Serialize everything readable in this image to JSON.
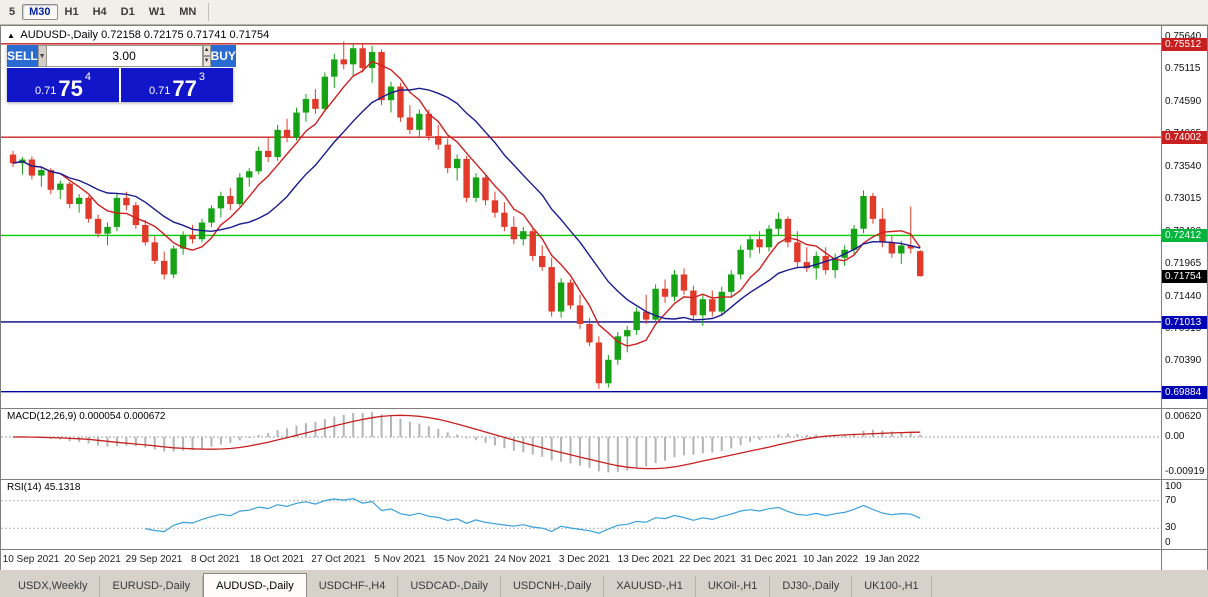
{
  "toolbar": {
    "buttons": [
      {
        "label": "5",
        "active": false
      },
      {
        "label": "M30",
        "active": true
      },
      {
        "label": "H1",
        "active": false
      },
      {
        "label": "H4",
        "active": false
      },
      {
        "label": "D1",
        "active": false
      },
      {
        "label": "W1",
        "active": false
      },
      {
        "label": "MN",
        "active": false
      }
    ]
  },
  "chart": {
    "header": {
      "collapse": "▲",
      "title": "AUDUSD-,Daily",
      "ohlc": "0.72158 0.72175 0.71741 0.71754"
    }
  },
  "trade_panel": {
    "sell_label": "SELL",
    "buy_label": "BUY",
    "volume": "3.00",
    "sell_price": {
      "small": "0.71",
      "big": "75",
      "sup": "4"
    },
    "buy_price": {
      "small": "0.71",
      "big": "77",
      "sup": "3"
    }
  },
  "price_axis": {
    "ticks": [
      "0.75640",
      "0.75115",
      "0.74590",
      "0.74065",
      "0.73540",
      "0.73015",
      "0.72490",
      "0.71965",
      "0.71440",
      "0.70915",
      "0.70390"
    ],
    "badges": [
      {
        "label": "0.75512",
        "value": 0.75512,
        "color": "#c82020"
      },
      {
        "label": "0.74002",
        "value": 0.74002,
        "color": "#c82020"
      },
      {
        "label": "0.72412",
        "value": 0.72412,
        "color": "#00b43c"
      },
      {
        "label": "0.71754",
        "value": 0.71754,
        "color": "#000000"
      },
      {
        "label": "0.71013",
        "value": 0.71013,
        "color": "#0000b4"
      },
      {
        "label": "0.69884",
        "value": 0.69884,
        "color": "#0000b4"
      }
    ]
  },
  "macd": {
    "title": "MACD(12,26,9)",
    "values": "0.000054 0.000672",
    "axis_top": "0.00620",
    "axis_zero": "0.00",
    "axis_bottom": "-0.00919",
    "max": 0.007,
    "min": -0.0105,
    "bar_color": "#b4b4b4",
    "signal_color": "#c82020"
  },
  "rsi": {
    "title": "RSI(14)",
    "value": "45.1318",
    "axis": [
      "100",
      "70",
      "30",
      "0"
    ],
    "levels": [
      70,
      30
    ],
    "color": "#3aa0dc"
  },
  "tabs": [
    {
      "label": "USDX,Weekly",
      "active": false
    },
    {
      "label": "EURUSD-,Daily",
      "active": false
    },
    {
      "label": "AUDUSD-,Daily",
      "active": true
    },
    {
      "label": "USDCHF-,H4",
      "active": false
    },
    {
      "label": "USDCAD-,Daily",
      "active": false
    },
    {
      "label": "USDCNH-,Daily",
      "active": false
    },
    {
      "label": "XAUUSD-,H1",
      "active": false
    },
    {
      "label": "UKOil-,H1",
      "active": false
    },
    {
      "label": "DJ30-,Daily",
      "active": false
    },
    {
      "label": "UK100-,H1",
      "active": false
    }
  ],
  "chart_data": {
    "type": "candlestick",
    "title": "AUDUSD-,Daily",
    "y_top": 0.758,
    "y_bottom": 0.6962,
    "up_color": "#15a215",
    "down_color": "#e13a2a",
    "ma": [
      {
        "period": 6,
        "color": "#cf1f1f"
      },
      {
        "period": 14,
        "color": "#1b1b8f"
      }
    ],
    "hlines": [
      {
        "value": 0.75512,
        "color": "#c82020"
      },
      {
        "value": 0.74002,
        "color": "#c82020"
      },
      {
        "value": 0.72412,
        "color": "#00cc00"
      },
      {
        "value": 0.71013,
        "color": "#000080"
      },
      {
        "value": 0.69884,
        "color": "#0000a0"
      }
    ],
    "x_labels": [
      "10 Sep 2021",
      "20 Sep 2021",
      "29 Sep 2021",
      "8 Oct 2021",
      "18 Oct 2021",
      "27 Oct 2021",
      "5 Nov 2021",
      "15 Nov 2021",
      "24 Nov 2021",
      "3 Dec 2021",
      "13 Dec 2021",
      "22 Dec 2021",
      "31 Dec 2021",
      "10 Jan 2022",
      "19 Jan 2022"
    ],
    "candles": [
      [
        0.7372,
        0.7378,
        0.7352,
        0.7358
      ],
      [
        0.7358,
        0.7368,
        0.734,
        0.7364
      ],
      [
        0.7364,
        0.7369,
        0.7332,
        0.7338
      ],
      [
        0.7338,
        0.7352,
        0.732,
        0.7347
      ],
      [
        0.7347,
        0.735,
        0.7308,
        0.7315
      ],
      [
        0.7315,
        0.733,
        0.73,
        0.7325
      ],
      [
        0.7325,
        0.7328,
        0.7285,
        0.7292
      ],
      [
        0.7292,
        0.7308,
        0.7278,
        0.7302
      ],
      [
        0.7302,
        0.7305,
        0.7262,
        0.7268
      ],
      [
        0.7268,
        0.7275,
        0.7238,
        0.7244
      ],
      [
        0.7244,
        0.7262,
        0.7225,
        0.7255
      ],
      [
        0.7255,
        0.731,
        0.7248,
        0.7302
      ],
      [
        0.7302,
        0.7312,
        0.7282,
        0.729
      ],
      [
        0.729,
        0.7295,
        0.7252,
        0.7258
      ],
      [
        0.7258,
        0.7266,
        0.7225,
        0.723
      ],
      [
        0.723,
        0.724,
        0.7195,
        0.72
      ],
      [
        0.72,
        0.7215,
        0.717,
        0.7178
      ],
      [
        0.7178,
        0.7225,
        0.7172,
        0.722
      ],
      [
        0.722,
        0.7248,
        0.721,
        0.7242
      ],
      [
        0.7242,
        0.7258,
        0.7228,
        0.7235
      ],
      [
        0.7235,
        0.7268,
        0.723,
        0.7262
      ],
      [
        0.7262,
        0.729,
        0.7255,
        0.7285
      ],
      [
        0.7285,
        0.7312,
        0.727,
        0.7305
      ],
      [
        0.7305,
        0.7318,
        0.7282,
        0.7292
      ],
      [
        0.7292,
        0.7342,
        0.7288,
        0.7335
      ],
      [
        0.7335,
        0.735,
        0.732,
        0.7345
      ],
      [
        0.7345,
        0.7385,
        0.734,
        0.7378
      ],
      [
        0.7378,
        0.74,
        0.736,
        0.7368
      ],
      [
        0.7368,
        0.742,
        0.7362,
        0.7412
      ],
      [
        0.7412,
        0.743,
        0.7392,
        0.74
      ],
      [
        0.74,
        0.7448,
        0.7395,
        0.744
      ],
      [
        0.744,
        0.747,
        0.7425,
        0.7462
      ],
      [
        0.7462,
        0.7478,
        0.7438,
        0.7446
      ],
      [
        0.7446,
        0.7505,
        0.7442,
        0.7498
      ],
      [
        0.7498,
        0.7535,
        0.748,
        0.7526
      ],
      [
        0.7526,
        0.7555,
        0.751,
        0.7518
      ],
      [
        0.7518,
        0.7552,
        0.75,
        0.7544
      ],
      [
        0.7544,
        0.755,
        0.7505,
        0.7512
      ],
      [
        0.7512,
        0.7548,
        0.7488,
        0.7538
      ],
      [
        0.7538,
        0.7542,
        0.7452,
        0.746
      ],
      [
        0.746,
        0.749,
        0.744,
        0.7482
      ],
      [
        0.7482,
        0.7488,
        0.7425,
        0.7432
      ],
      [
        0.7432,
        0.7452,
        0.7405,
        0.7412
      ],
      [
        0.7412,
        0.7445,
        0.74,
        0.7438
      ],
      [
        0.7438,
        0.7445,
        0.7395,
        0.7402
      ],
      [
        0.7402,
        0.742,
        0.738,
        0.7388
      ],
      [
        0.7388,
        0.7398,
        0.7342,
        0.735
      ],
      [
        0.735,
        0.7372,
        0.733,
        0.7365
      ],
      [
        0.7365,
        0.737,
        0.7295,
        0.7302
      ],
      [
        0.7302,
        0.7342,
        0.7295,
        0.7335
      ],
      [
        0.7335,
        0.734,
        0.729,
        0.7298
      ],
      [
        0.7298,
        0.7312,
        0.727,
        0.7278
      ],
      [
        0.7278,
        0.7295,
        0.7248,
        0.7255
      ],
      [
        0.7255,
        0.7272,
        0.7227,
        0.7235
      ],
      [
        0.7235,
        0.7255,
        0.7225,
        0.7248
      ],
      [
        0.7248,
        0.7252,
        0.72,
        0.7208
      ],
      [
        0.7208,
        0.7225,
        0.7184,
        0.719
      ],
      [
        0.719,
        0.7205,
        0.711,
        0.7118
      ],
      [
        0.7118,
        0.7172,
        0.7108,
        0.7165
      ],
      [
        0.7165,
        0.717,
        0.7122,
        0.7128
      ],
      [
        0.7128,
        0.7145,
        0.709,
        0.7098
      ],
      [
        0.7098,
        0.7108,
        0.7062,
        0.7068
      ],
      [
        0.7068,
        0.7078,
        0.6993,
        0.7002
      ],
      [
        0.7002,
        0.7048,
        0.6995,
        0.704
      ],
      [
        0.704,
        0.7085,
        0.7032,
        0.7078
      ],
      [
        0.7078,
        0.7095,
        0.7052,
        0.7088
      ],
      [
        0.7088,
        0.7125,
        0.708,
        0.7118
      ],
      [
        0.7118,
        0.7145,
        0.7098,
        0.7105
      ],
      [
        0.7105,
        0.7162,
        0.71,
        0.7155
      ],
      [
        0.7155,
        0.717,
        0.7132,
        0.7142
      ],
      [
        0.7142,
        0.7185,
        0.7135,
        0.7178
      ],
      [
        0.7178,
        0.7188,
        0.7145,
        0.7152
      ],
      [
        0.7152,
        0.716,
        0.7105,
        0.7112
      ],
      [
        0.7112,
        0.7145,
        0.7095,
        0.7138
      ],
      [
        0.7138,
        0.7152,
        0.711,
        0.7118
      ],
      [
        0.7118,
        0.7158,
        0.7112,
        0.715
      ],
      [
        0.715,
        0.7185,
        0.7142,
        0.7178
      ],
      [
        0.7178,
        0.7225,
        0.717,
        0.7218
      ],
      [
        0.7218,
        0.7242,
        0.7205,
        0.7235
      ],
      [
        0.7235,
        0.7248,
        0.7212,
        0.7222
      ],
      [
        0.7222,
        0.7258,
        0.7215,
        0.7252
      ],
      [
        0.7252,
        0.7278,
        0.724,
        0.7268
      ],
      [
        0.7268,
        0.7272,
        0.7222,
        0.723
      ],
      [
        0.723,
        0.7248,
        0.719,
        0.7198
      ],
      [
        0.7198,
        0.7222,
        0.7182,
        0.7188
      ],
      [
        0.7188,
        0.7215,
        0.717,
        0.7208
      ],
      [
        0.7208,
        0.7222,
        0.7178,
        0.7185
      ],
      [
        0.7185,
        0.7212,
        0.7172,
        0.7205
      ],
      [
        0.7205,
        0.7225,
        0.7192,
        0.7218
      ],
      [
        0.7218,
        0.7258,
        0.721,
        0.7252
      ],
      [
        0.7252,
        0.7314,
        0.7245,
        0.7305
      ],
      [
        0.7305,
        0.731,
        0.726,
        0.7268
      ],
      [
        0.7268,
        0.7285,
        0.7222,
        0.723
      ],
      [
        0.723,
        0.724,
        0.7205,
        0.7212
      ],
      [
        0.7212,
        0.7232,
        0.7195,
        0.7225
      ],
      [
        0.7225,
        0.7288,
        0.7212,
        0.722
      ],
      [
        0.72158,
        0.72175,
        0.71741,
        0.71754
      ]
    ]
  }
}
